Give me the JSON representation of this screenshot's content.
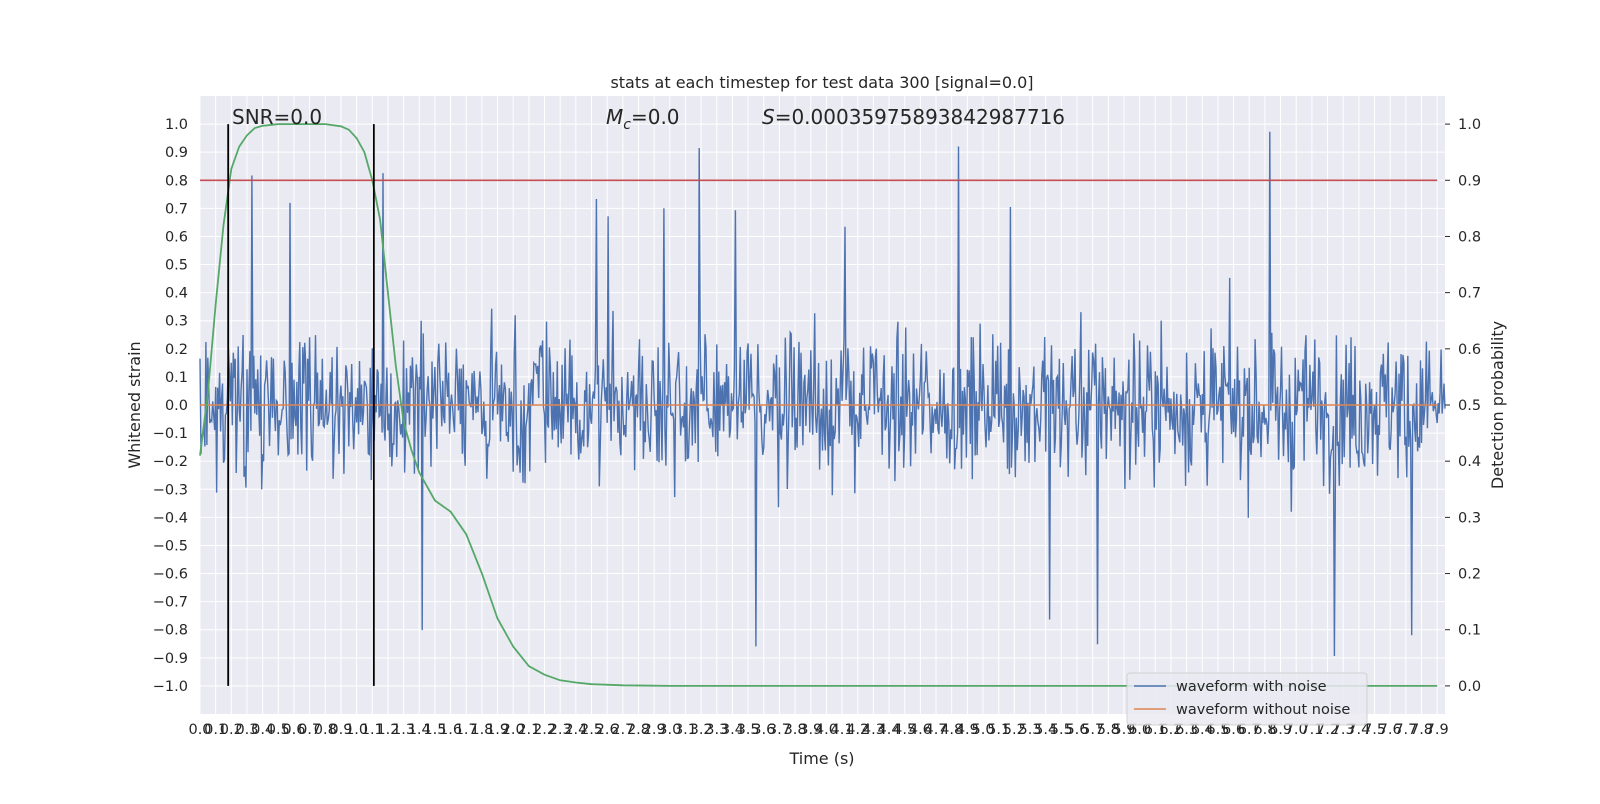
{
  "chart_data": {
    "type": "line",
    "title": "stats at each timestep for test data 300 [signal=0.0]",
    "xlabel": "Time (s)",
    "ylabel": "Whitened strain",
    "ylabel_right": "Detection probability",
    "xlim": [
      0.0,
      7.95
    ],
    "ylim": [
      -1.1,
      1.1
    ],
    "ylim_right": [
      -0.05,
      1.05
    ],
    "x_ticks": [
      "0.0",
      "0.1",
      "0.2",
      "0.3",
      "0.4",
      "0.5",
      "0.6",
      "0.7",
      "0.8",
      "0.9",
      "1.0",
      "1.1",
      "1.2",
      "1.3",
      "1.4",
      "1.5",
      "1.6",
      "1.7",
      "1.8",
      "1.9",
      "2.0",
      "2.1",
      "2.2",
      "2.3",
      "2.4",
      "2.5",
      "2.6",
      "2.7",
      "2.8",
      "2.9",
      "3.0",
      "3.1",
      "3.2",
      "3.3",
      "3.4",
      "3.5",
      "3.6",
      "3.7",
      "3.8",
      "3.9",
      "4.0",
      "4.1",
      "4.2",
      "4.3",
      "4.4",
      "4.5",
      "4.6",
      "4.7",
      "4.8",
      "4.9",
      "5.0",
      "5.1",
      "5.2",
      "5.3",
      "5.4",
      "5.5",
      "5.6",
      "5.7",
      "5.8",
      "5.9",
      "6.0",
      "6.1",
      "6.2",
      "6.3",
      "6.4",
      "6.5",
      "6.6",
      "6.7",
      "6.8",
      "6.9",
      "7.0",
      "7.1",
      "7.2",
      "7.3",
      "7.4",
      "7.5",
      "7.6",
      "7.7",
      "7.8",
      "7.9"
    ],
    "y_ticks": [
      "1.0",
      "0.9",
      "0.8",
      "0.7",
      "0.6",
      "0.5",
      "0.4",
      "0.3",
      "0.2",
      "0.1",
      "0.0",
      "−0.1",
      "−0.2",
      "−0.3",
      "−0.4",
      "−0.5",
      "−0.6",
      "−0.7",
      "−0.8",
      "−0.9",
      "−1.0"
    ],
    "y_ticks_right": [
      "1.0",
      "0.9",
      "0.8",
      "0.7",
      "0.6",
      "0.5",
      "0.4",
      "0.3",
      "0.2",
      "0.1",
      "0.0"
    ],
    "annotations": {
      "snr": "SNR=0.0",
      "mc": "=0.0",
      "mc_symbol": "M",
      "mc_sub": "c",
      "s": "=0.00035975893842987716",
      "s_symbol": "S"
    },
    "vlines_x": [
      0.18,
      1.11
    ],
    "threshold_right": 0.9,
    "legend_position": "lower-right",
    "series": [
      {
        "name": "waveform with noise",
        "color": "#4c72b0",
        "kind": "noise",
        "envelope_typical": 0.4,
        "envelope_max": 1.0,
        "samples_per_second": 160
      },
      {
        "name": "waveform without noise",
        "color": "#dd8452",
        "kind": "flat",
        "value": 0.0
      },
      {
        "color": "#55a868",
        "axis": "right",
        "x": [
          0.0,
          0.05,
          0.1,
          0.15,
          0.2,
          0.25,
          0.3,
          0.35,
          0.4,
          0.5,
          0.6,
          0.7,
          0.8,
          0.9,
          0.95,
          1.0,
          1.05,
          1.1,
          1.15,
          1.2,
          1.25,
          1.3,
          1.35,
          1.4,
          1.5,
          1.6,
          1.7,
          1.8,
          1.9,
          2.0,
          2.1,
          2.2,
          2.3,
          2.4,
          2.5,
          2.7,
          3.0,
          7.9
        ],
        "y": [
          0.41,
          0.52,
          0.68,
          0.82,
          0.92,
          0.96,
          0.98,
          0.993,
          0.997,
          1.0,
          1.0,
          1.0,
          1.0,
          0.996,
          0.99,
          0.975,
          0.95,
          0.9,
          0.83,
          0.7,
          0.57,
          0.47,
          0.42,
          0.38,
          0.33,
          0.31,
          0.27,
          0.2,
          0.12,
          0.07,
          0.035,
          0.02,
          0.01,
          0.006,
          0.003,
          0.001,
          0.0,
          0.0
        ]
      }
    ],
    "colors": {
      "background": "#eaeaf2",
      "grid": "#ffffff",
      "vline": "#000000",
      "threshold": "#c44e52"
    }
  }
}
